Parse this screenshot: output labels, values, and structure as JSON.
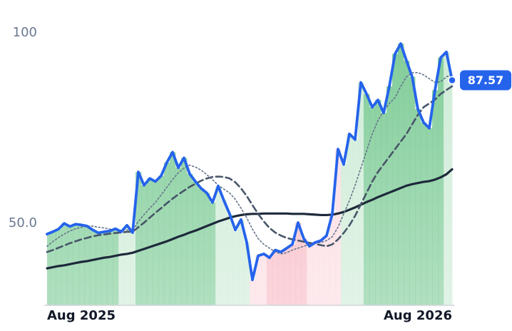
{
  "chart_data": {
    "type": "line",
    "categories": [
      "Aug 2025",
      null,
      null,
      null,
      null,
      null,
      null,
      null,
      null,
      null,
      null,
      null,
      null,
      null,
      null,
      null,
      null,
      null,
      null,
      null,
      null,
      null,
      null,
      null,
      null,
      null,
      null,
      null,
      null,
      null,
      null,
      null,
      null,
      null,
      null,
      null,
      null,
      null,
      null,
      null,
      null,
      null,
      null,
      null,
      null,
      null,
      null,
      null,
      null,
      null,
      null,
      null,
      null,
      null,
      null,
      null,
      null,
      null,
      null,
      null,
      null,
      null,
      null,
      null,
      null,
      null,
      null,
      null,
      null,
      null,
      null,
      "Aug 2026"
    ],
    "ylim": [
      28.5,
      104.9
    ],
    "yticks": [
      {
        "value": 50,
        "label": "50.0"
      },
      100
    ],
    "grid": false,
    "bar_colors": [
      "#7dcb96",
      "#7dcb96",
      "#7dcb96",
      "#7dcb96",
      "#7dcb96",
      "#7dcb96",
      "#7dcb96",
      "#7dcb96",
      "#7dcb96",
      "#7dcb96",
      "#7dcb96",
      "#7dcb96",
      "#7dcb96",
      "#cdebd6",
      "#cdebd6",
      "#cdebd6",
      "#7dcb96",
      "#7dcb96",
      "#7dcb96",
      "#7dcb96",
      "#7dcb96",
      "#7dcb96",
      "#7dcb96",
      "#7dcb96",
      "#7dcb96",
      "#7dcb96",
      "#7dcb96",
      "#7dcb96",
      "#7dcb96",
      "#7dcb96",
      "#cdebd6",
      "#cdebd6",
      "#cdebd6",
      "#cdebd6",
      "#cdebd6",
      "#cdebd6",
      "#fcdbe1",
      "#fcdbe1",
      "#fcdbe1",
      "#f8b9c4",
      "#f8b9c4",
      "#f8b9c4",
      "#f8b9c4",
      "#f8b9c4",
      "#f8b9c4",
      "#f8b9c4",
      "#fcdbe1",
      "#fcdbe1",
      "#fcdbe1",
      "#fcdbe1",
      "#fcdbe1",
      "#fcdbe1",
      "#cdebd6",
      "#cdebd6",
      "#cdebd6",
      "#cdebd6",
      "#7dcb96",
      "#7dcb96",
      "#7dcb96",
      "#7dcb96",
      "#7dcb96",
      "#7dcb96",
      "#7dcb96",
      "#7dcb96",
      "#7dcb96",
      "#7dcb96",
      "#7dcb96",
      "#7dcb96",
      "#7dcb96",
      "#7dcb96",
      "#cdebd6",
      "#cdebd6"
    ],
    "series": [
      {
        "color": "#2563eb",
        "style": "solid",
        "values": [
          47.2,
          47.8,
          48.5,
          50.0,
          49.2,
          49.8,
          49.6,
          49.3,
          48.3,
          47.5,
          47.8,
          48.0,
          48.6,
          47.8,
          49.5,
          47.6,
          63.5,
          60.0,
          61.8,
          61.0,
          62.5,
          66.0,
          68.7,
          64.6,
          67.2,
          63.0,
          61.0,
          59.2,
          58.0,
          55.5,
          59.8,
          56.0,
          52.5,
          48.3,
          51.0,
          45.0,
          35.2,
          41.5,
          42.0,
          41.0,
          43.0,
          42.5,
          43.5,
          44.5,
          50.2,
          46.0,
          44.0,
          45.0,
          45.5,
          46.8,
          52.5,
          69.5,
          65.5,
          73.5,
          72.0,
          87.0,
          84.0,
          80.5,
          82.4,
          79.0,
          86.0,
          94.5,
          97.2,
          92.7,
          88.5,
          80.0,
          76.5,
          75.0,
          85.0,
          93.5,
          95.0,
          87.57
        ]
      },
      {
        "color": "#64748b",
        "style": "dotted",
        "values": [
          44.0,
          45.2,
          46.3,
          47.2,
          48.0,
          48.6,
          49.0,
          49.3,
          49.3,
          49.0,
          48.8,
          48.5,
          48.3,
          48.2,
          48.3,
          48.1,
          50.5,
          52.3,
          54.0,
          55.5,
          57.5,
          59.5,
          61.5,
          63.3,
          64.5,
          65.3,
          64.8,
          64.0,
          62.8,
          61.5,
          60.0,
          59.0,
          58.0,
          56.3,
          54.0,
          51.5,
          48.5,
          46.0,
          44.5,
          43.5,
          42.5,
          42.0,
          42.3,
          43.0,
          43.5,
          44.0,
          44.5,
          44.8,
          45.0,
          45.5,
          46.5,
          49.0,
          52.5,
          56.0,
          60.0,
          64.5,
          69.0,
          73.5,
          77.0,
          79.5,
          81.5,
          83.0,
          86.0,
          88.5,
          89.5,
          89.6,
          89.0,
          88.0,
          87.0,
          87.2,
          88.5,
          89.0
        ]
      },
      {
        "color": "#475569",
        "style": "dashed",
        "values": [
          42.5,
          43.0,
          43.6,
          44.2,
          44.8,
          45.3,
          45.8,
          46.2,
          46.6,
          46.9,
          47.1,
          47.3,
          47.5,
          47.6,
          47.8,
          47.8,
          49.0,
          50.2,
          51.5,
          52.8,
          54.0,
          55.3,
          56.5,
          57.6,
          58.6,
          59.6,
          60.4,
          61.2,
          61.8,
          62.2,
          62.3,
          62.2,
          61.8,
          60.8,
          59.2,
          57.2,
          54.8,
          52.5,
          50.5,
          48.8,
          47.6,
          46.8,
          46.2,
          45.8,
          45.5,
          45.2,
          44.9,
          44.6,
          44.3,
          44.0,
          44.5,
          45.8,
          47.5,
          49.5,
          52.0,
          55.0,
          58.0,
          61.0,
          63.5,
          65.5,
          67.5,
          69.5,
          71.5,
          73.5,
          76.0,
          78.5,
          80.5,
          81.5,
          82.5,
          84.0,
          85.0,
          86.0
        ]
      },
      {
        "color": "#1e293b",
        "style": "solid",
        "values": [
          38.2,
          38.5,
          38.8,
          39.0,
          39.3,
          39.6,
          39.9,
          40.1,
          40.4,
          40.7,
          41.0,
          41.2,
          41.5,
          41.8,
          42.0,
          42.3,
          42.8,
          43.3,
          43.8,
          44.3,
          44.8,
          45.3,
          45.9,
          46.5,
          47.0,
          47.6,
          48.1,
          48.7,
          49.3,
          49.9,
          50.5,
          51.0,
          51.5,
          51.9,
          52.2,
          52.4,
          52.5,
          52.5,
          52.6,
          52.6,
          52.6,
          52.6,
          52.6,
          52.5,
          52.5,
          52.5,
          52.4,
          52.3,
          52.2,
          52.2,
          52.3,
          52.6,
          53.0,
          53.6,
          54.2,
          54.9,
          55.6,
          56.2,
          56.9,
          57.5,
          58.1,
          58.7,
          59.3,
          59.9,
          60.3,
          60.6,
          60.9,
          61.1,
          61.5,
          62.1,
          62.9,
          64.2
        ]
      }
    ]
  }
}
